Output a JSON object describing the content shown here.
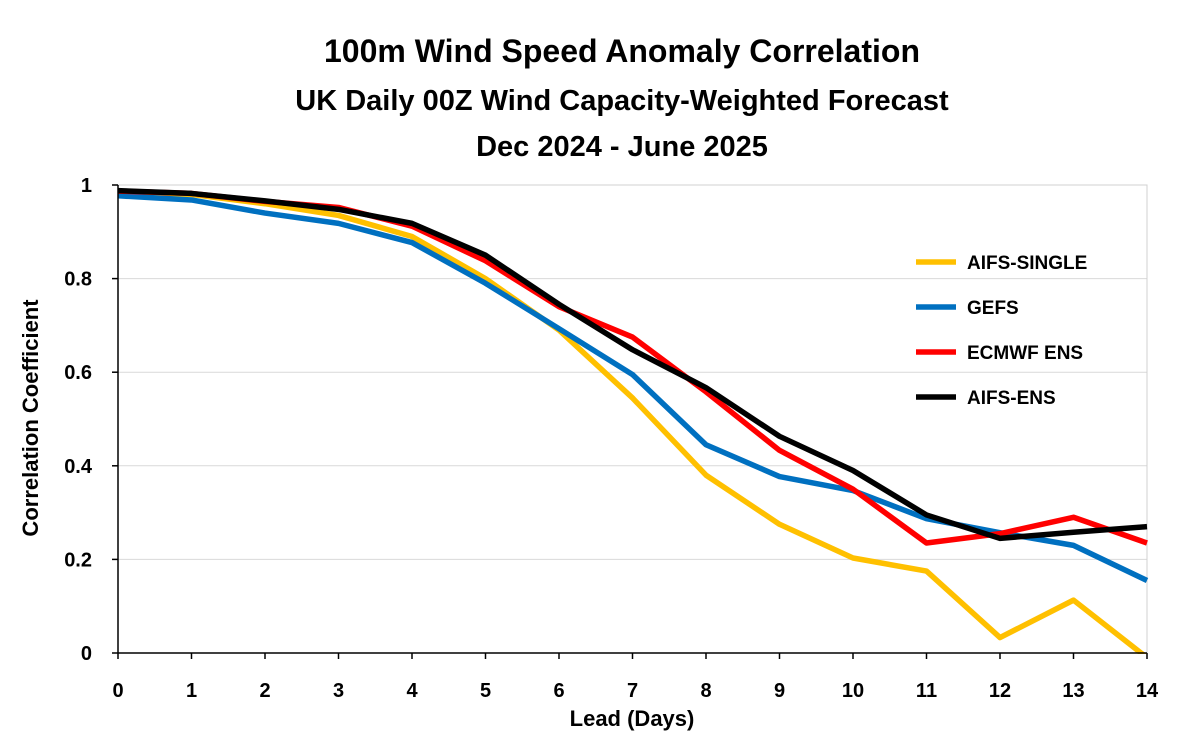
{
  "chart_data": {
    "type": "line",
    "title": "100m Wind Speed Anomaly Correlation",
    "subtitle": "UK Daily 00Z Wind Capacity-Weighted Forecast",
    "subtitle2": "Dec 2024 - June 2025",
    "xlabel": "Lead (Days)",
    "ylabel": "Correlation Coefficient",
    "x": [
      0,
      1,
      2,
      3,
      4,
      5,
      6,
      7,
      8,
      9,
      10,
      11,
      12,
      13,
      14
    ],
    "xticks": [
      "0",
      "1",
      "2",
      "3",
      "4",
      "5",
      "6",
      "7",
      "8",
      "9",
      "10",
      "11",
      "12",
      "13",
      "14"
    ],
    "yticks": [
      "0",
      "0.2",
      "0.4",
      "0.6",
      "0.8",
      "1"
    ],
    "xlim": [
      0,
      14
    ],
    "ylim": [
      0,
      1
    ],
    "grid": "horizontal",
    "legend_position": "right",
    "series": [
      {
        "name": "AIFS-SINGLE",
        "color": "#FFC000",
        "values": [
          0.985,
          0.98,
          0.96,
          0.935,
          0.89,
          0.8,
          0.69,
          0.545,
          0.38,
          0.275,
          0.203,
          0.175,
          0.033,
          0.113,
          -0.01
        ]
      },
      {
        "name": "GEFS",
        "color": "#0070C0",
        "values": [
          0.977,
          0.968,
          0.94,
          0.918,
          0.877,
          0.79,
          0.693,
          0.595,
          0.445,
          0.377,
          0.347,
          0.287,
          0.257,
          0.23,
          0.155
        ]
      },
      {
        "name": "ECMWF ENS",
        "color": "#FF0000",
        "values": [
          0.987,
          0.982,
          0.965,
          0.952,
          0.912,
          0.838,
          0.74,
          0.675,
          0.558,
          0.433,
          0.35,
          0.235,
          0.255,
          0.29,
          0.235
        ]
      },
      {
        "name": "AIFS-ENS",
        "color": "#000000",
        "values": [
          0.988,
          0.982,
          0.966,
          0.948,
          0.918,
          0.85,
          0.745,
          0.648,
          0.567,
          0.463,
          0.39,
          0.295,
          0.245,
          0.258,
          0.27
        ]
      }
    ]
  }
}
